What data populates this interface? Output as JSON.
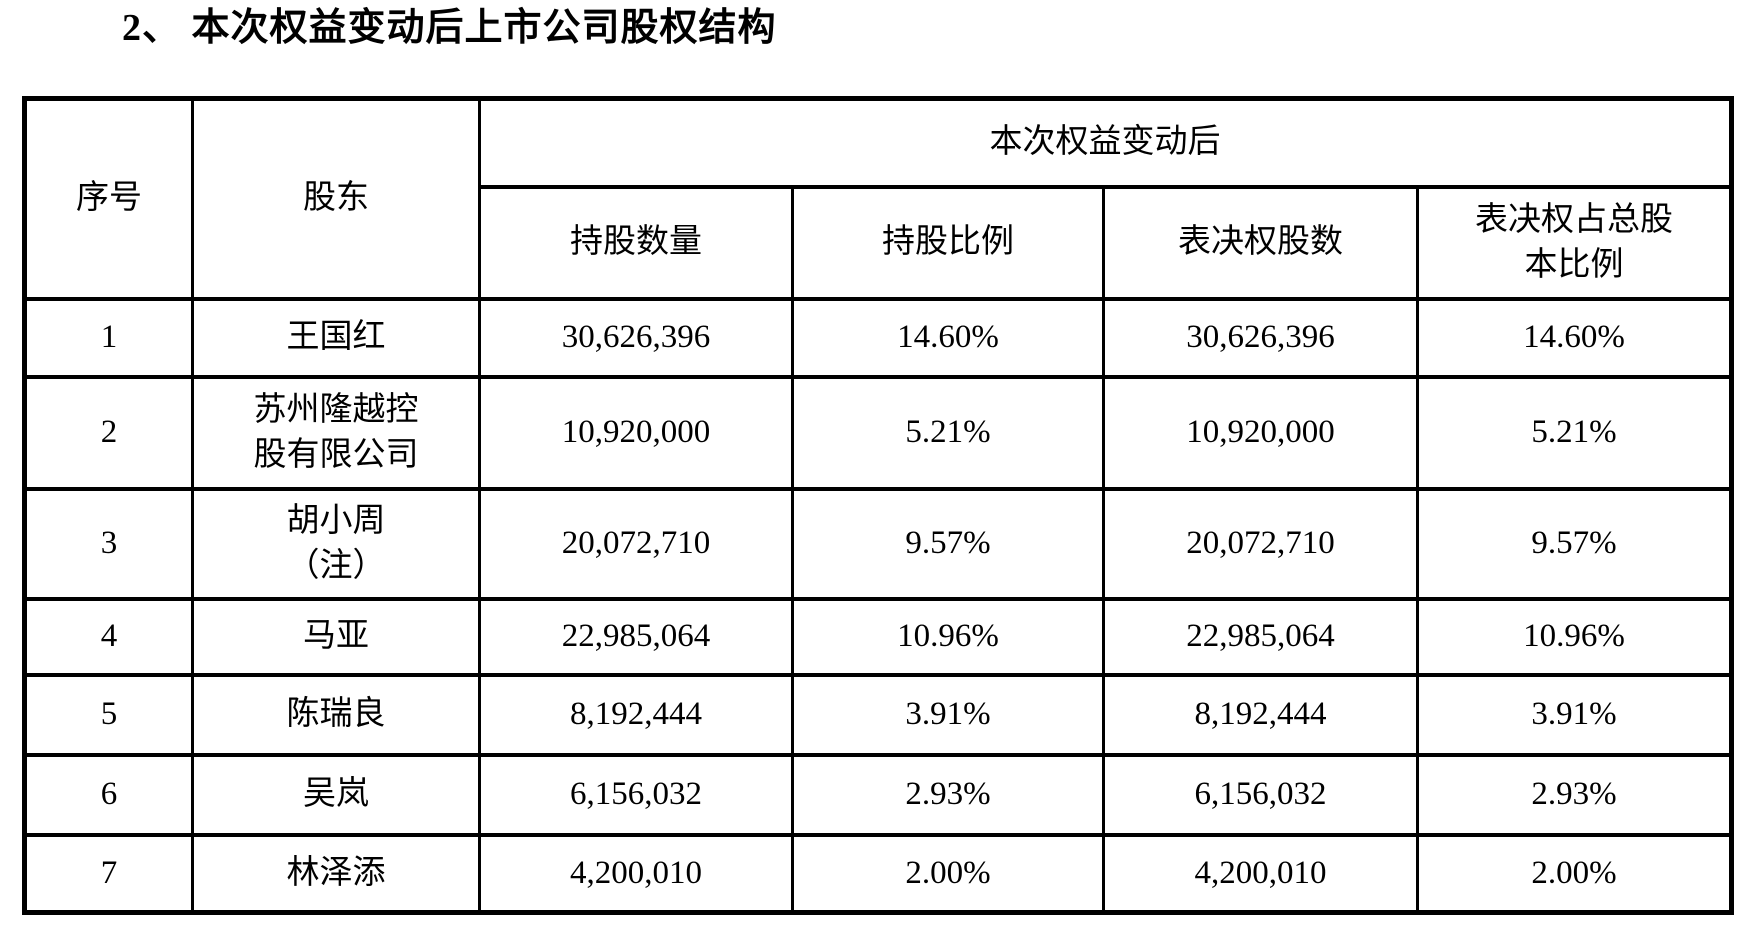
{
  "page": {
    "title": "2、 本次权益变动后上市公司股权结构"
  },
  "table": {
    "headers": {
      "no": "序号",
      "shareholder": "股东",
      "group": "本次权益变动后",
      "shares": "持股数量",
      "ratio": "持股比例",
      "voting_shares": "表决权股数",
      "voting_ratio": "表决权占总股\n本比例"
    },
    "rows": [
      {
        "no": "1",
        "shareholder": "王国红",
        "shares": "30,626,396",
        "ratio": "14.60%",
        "voting_shares": "30,626,396",
        "voting_ratio": "14.60%"
      },
      {
        "no": "2",
        "shareholder": "苏州隆越控\n股有限公司",
        "shares": "10,920,000",
        "ratio": "5.21%",
        "voting_shares": "10,920,000",
        "voting_ratio": "5.21%"
      },
      {
        "no": "3",
        "shareholder": "胡小周\n（注）",
        "shares": "20,072,710",
        "ratio": "9.57%",
        "voting_shares": "20,072,710",
        "voting_ratio": "9.57%"
      },
      {
        "no": "4",
        "shareholder": "马亚",
        "shares": "22,985,064",
        "ratio": "10.96%",
        "voting_shares": "22,985,064",
        "voting_ratio": "10.96%"
      },
      {
        "no": "5",
        "shareholder": "陈瑞良",
        "shares": "8,192,444",
        "ratio": "3.91%",
        "voting_shares": "8,192,444",
        "voting_ratio": "3.91%"
      },
      {
        "no": "6",
        "shareholder": "吴岚",
        "shares": "6,156,032",
        "ratio": "2.93%",
        "voting_shares": "6,156,032",
        "voting_ratio": "2.93%"
      },
      {
        "no": "7",
        "shareholder": "林泽添",
        "shares": "4,200,010",
        "ratio": "2.00%",
        "voting_shares": "4,200,010",
        "voting_ratio": "2.00%"
      }
    ]
  }
}
